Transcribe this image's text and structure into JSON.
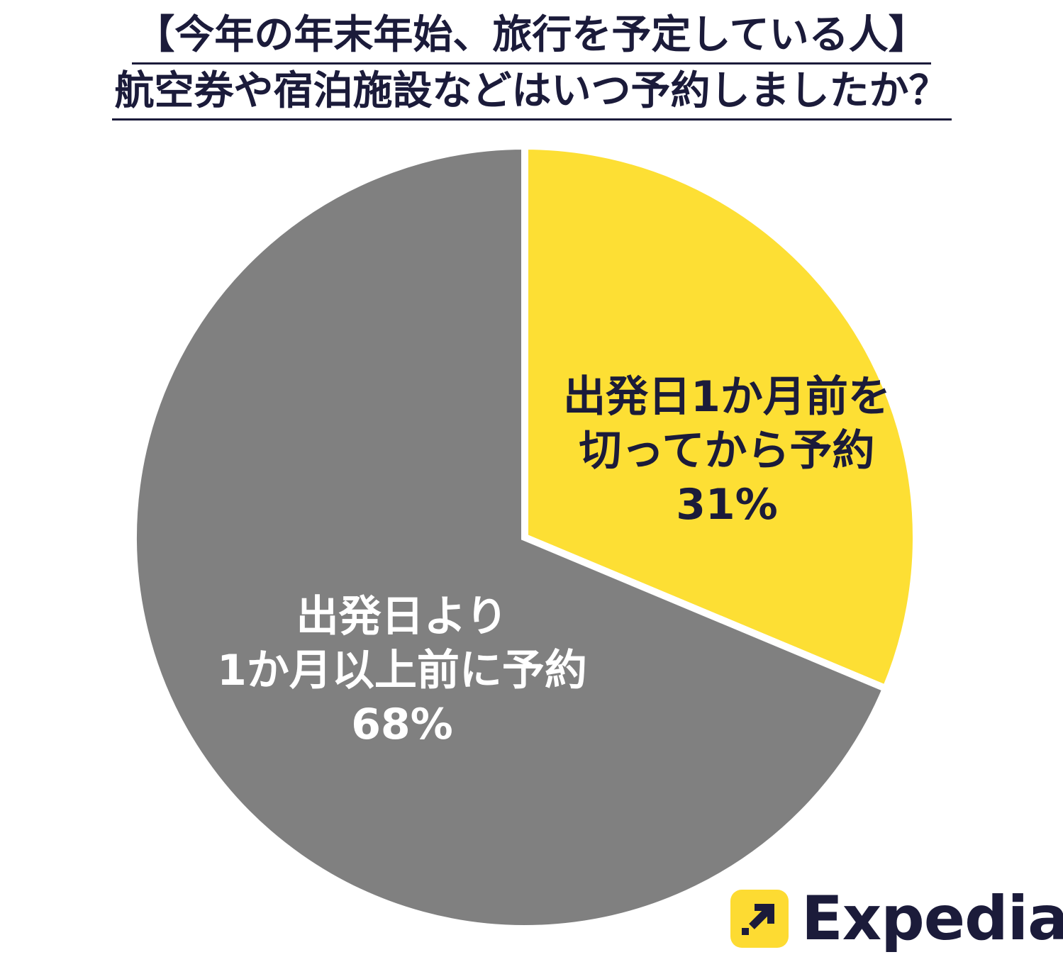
{
  "title": {
    "line1": "【今年の年末年始、旅行を予定している人】",
    "line2": "航空券や宿泊施設などはいつ予約しましたか？"
  },
  "chart_data": {
    "type": "pie",
    "start_angle_deg": 0,
    "direction": "clockwise",
    "slices": [
      {
        "label_lines": [
          "出発日1か月前を",
          "切ってから予約"
        ],
        "value_label": "31%",
        "value": 31,
        "color": "#fddf34",
        "text_color": "#1b1b3a"
      },
      {
        "label_lines": [
          "出発日より",
          "1か月以上前に予約"
        ],
        "value_label": "68%",
        "value": 68,
        "color": "#808080",
        "text_color": "#ffffff"
      }
    ]
  },
  "logo": {
    "text": "Expedia",
    "registered": "®",
    "mark_color": "#fddb32",
    "mark_icon": "arrow-up-right-icon"
  }
}
